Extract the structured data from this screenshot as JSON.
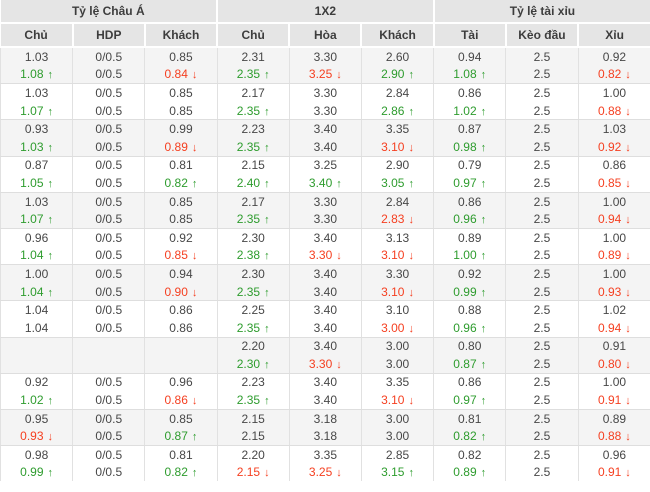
{
  "header": {
    "sections": [
      {
        "title": "Tỷ lệ Châu Á",
        "cols": [
          "Chủ",
          "HDP",
          "Khách"
        ]
      },
      {
        "title": "1X2",
        "cols": [
          "Chủ",
          "Hòa",
          "Khách"
        ]
      },
      {
        "title": "Tỷ lệ tài xỉu",
        "cols": [
          "Tài",
          "Kèo đầu",
          "Xỉu"
        ]
      }
    ]
  },
  "arrows": {
    "up": "↑",
    "down": "↓"
  },
  "colors": {
    "up": "#2e9c2e",
    "down": "#f53f20",
    "header_bg": "#e5e5e5",
    "row_shaded_bg": "#f4f4f4",
    "text": "#474747"
  },
  "groups": [
    {
      "open": [
        "1.03",
        "0/0.5",
        "0.85",
        "2.31",
        "3.30",
        "2.60",
        "0.94",
        "2.5",
        "0.92"
      ],
      "live": [
        [
          "1.08",
          "up"
        ],
        "0/0.5",
        [
          "0.84",
          "down"
        ],
        [
          "2.35",
          "up"
        ],
        [
          "3.25",
          "down"
        ],
        [
          "2.90",
          "up"
        ],
        [
          "1.08",
          "up"
        ],
        "2.5",
        [
          "0.82",
          "down"
        ]
      ]
    },
    {
      "open": [
        "1.03",
        "0/0.5",
        "0.85",
        "2.17",
        "3.30",
        "2.84",
        "0.86",
        "2.5",
        "1.00"
      ],
      "live": [
        [
          "1.07",
          "up"
        ],
        "0/0.5",
        "0.85",
        [
          "2.35",
          "up"
        ],
        "3.30",
        [
          "2.86",
          "up"
        ],
        [
          "1.02",
          "up"
        ],
        "2.5",
        [
          "0.88",
          "down"
        ]
      ]
    },
    {
      "open": [
        "0.93",
        "0/0.5",
        "0.99",
        "2.23",
        "3.40",
        "3.35",
        "0.87",
        "2.5",
        "1.03"
      ],
      "live": [
        [
          "1.03",
          "up"
        ],
        "0/0.5",
        [
          "0.89",
          "down"
        ],
        [
          "2.35",
          "up"
        ],
        "3.40",
        [
          "3.10",
          "down"
        ],
        [
          "0.98",
          "up"
        ],
        "2.5",
        [
          "0.92",
          "down"
        ]
      ]
    },
    {
      "open": [
        "0.87",
        "0/0.5",
        "0.81",
        "2.15",
        "3.25",
        "2.90",
        "0.79",
        "2.5",
        "0.86"
      ],
      "live": [
        [
          "1.05",
          "up"
        ],
        "0/0.5",
        [
          "0.82",
          "up"
        ],
        [
          "2.40",
          "up"
        ],
        [
          "3.40",
          "up"
        ],
        [
          "3.05",
          "up"
        ],
        [
          "0.97",
          "up"
        ],
        "2.5",
        [
          "0.85",
          "down"
        ]
      ]
    },
    {
      "open": [
        "1.03",
        "0/0.5",
        "0.85",
        "2.17",
        "3.30",
        "2.84",
        "0.86",
        "2.5",
        "1.00"
      ],
      "live": [
        [
          "1.07",
          "up"
        ],
        "0/0.5",
        "0.85",
        [
          "2.35",
          "up"
        ],
        "3.30",
        [
          "2.83",
          "down"
        ],
        [
          "0.96",
          "up"
        ],
        "2.5",
        [
          "0.94",
          "down"
        ]
      ]
    },
    {
      "open": [
        "0.96",
        "0/0.5",
        "0.92",
        "2.30",
        "3.40",
        "3.13",
        "0.89",
        "2.5",
        "1.00"
      ],
      "live": [
        [
          "1.04",
          "up"
        ],
        "0/0.5",
        [
          "0.85",
          "down"
        ],
        [
          "2.38",
          "up"
        ],
        [
          "3.30",
          "down"
        ],
        [
          "3.10",
          "down"
        ],
        [
          "1.00",
          "up"
        ],
        "2.5",
        [
          "0.89",
          "down"
        ]
      ]
    },
    {
      "open": [
        "1.00",
        "0/0.5",
        "0.94",
        "2.30",
        "3.40",
        "3.30",
        "0.92",
        "2.5",
        "1.00"
      ],
      "live": [
        [
          "1.04",
          "up"
        ],
        "0/0.5",
        [
          "0.90",
          "down"
        ],
        [
          "2.35",
          "up"
        ],
        "3.40",
        [
          "3.10",
          "down"
        ],
        [
          "0.99",
          "up"
        ],
        "2.5",
        [
          "0.93",
          "down"
        ]
      ]
    },
    {
      "open": [
        "1.04",
        "0/0.5",
        "0.86",
        "2.25",
        "3.40",
        "3.10",
        "0.88",
        "2.5",
        "1.02"
      ],
      "live": [
        "1.04",
        "0/0.5",
        "0.86",
        [
          "2.35",
          "up"
        ],
        "3.40",
        [
          "3.00",
          "down"
        ],
        [
          "0.96",
          "up"
        ],
        "2.5",
        [
          "0.94",
          "down"
        ]
      ]
    },
    {
      "open": [
        "",
        "",
        "",
        "2.20",
        "3.40",
        "3.00",
        "0.80",
        "2.5",
        "0.91"
      ],
      "live": [
        "",
        "",
        "",
        [
          "2.30",
          "up"
        ],
        [
          "3.30",
          "down"
        ],
        "3.00",
        [
          "0.87",
          "up"
        ],
        "2.5",
        [
          "0.80",
          "down"
        ]
      ]
    },
    {
      "open": [
        "0.92",
        "0/0.5",
        "0.96",
        "2.23",
        "3.40",
        "3.35",
        "0.86",
        "2.5",
        "1.00"
      ],
      "live": [
        [
          "1.02",
          "up"
        ],
        "0/0.5",
        [
          "0.86",
          "down"
        ],
        [
          "2.35",
          "up"
        ],
        "3.40",
        [
          "3.10",
          "down"
        ],
        [
          "0.97",
          "up"
        ],
        "2.5",
        [
          "0.91",
          "down"
        ]
      ]
    },
    {
      "open": [
        "0.95",
        "0/0.5",
        "0.85",
        "2.15",
        "3.18",
        "3.00",
        "0.81",
        "2.5",
        "0.89"
      ],
      "live": [
        [
          "0.93",
          "down"
        ],
        "0/0.5",
        [
          "0.87",
          "up"
        ],
        "2.15",
        "3.18",
        "3.00",
        [
          "0.82",
          "up"
        ],
        "2.5",
        [
          "0.88",
          "down"
        ]
      ]
    },
    {
      "open": [
        "0.98",
        "0/0.5",
        "0.81",
        "2.20",
        "3.35",
        "2.85",
        "0.82",
        "2.5",
        "0.96"
      ],
      "live": [
        [
          "0.99",
          "up"
        ],
        "0/0.5",
        [
          "0.82",
          "up"
        ],
        [
          "2.15",
          "down"
        ],
        [
          "3.25",
          "down"
        ],
        [
          "3.15",
          "up"
        ],
        [
          "0.89",
          "up"
        ],
        "2.5",
        [
          "0.91",
          "down"
        ]
      ]
    }
  ]
}
